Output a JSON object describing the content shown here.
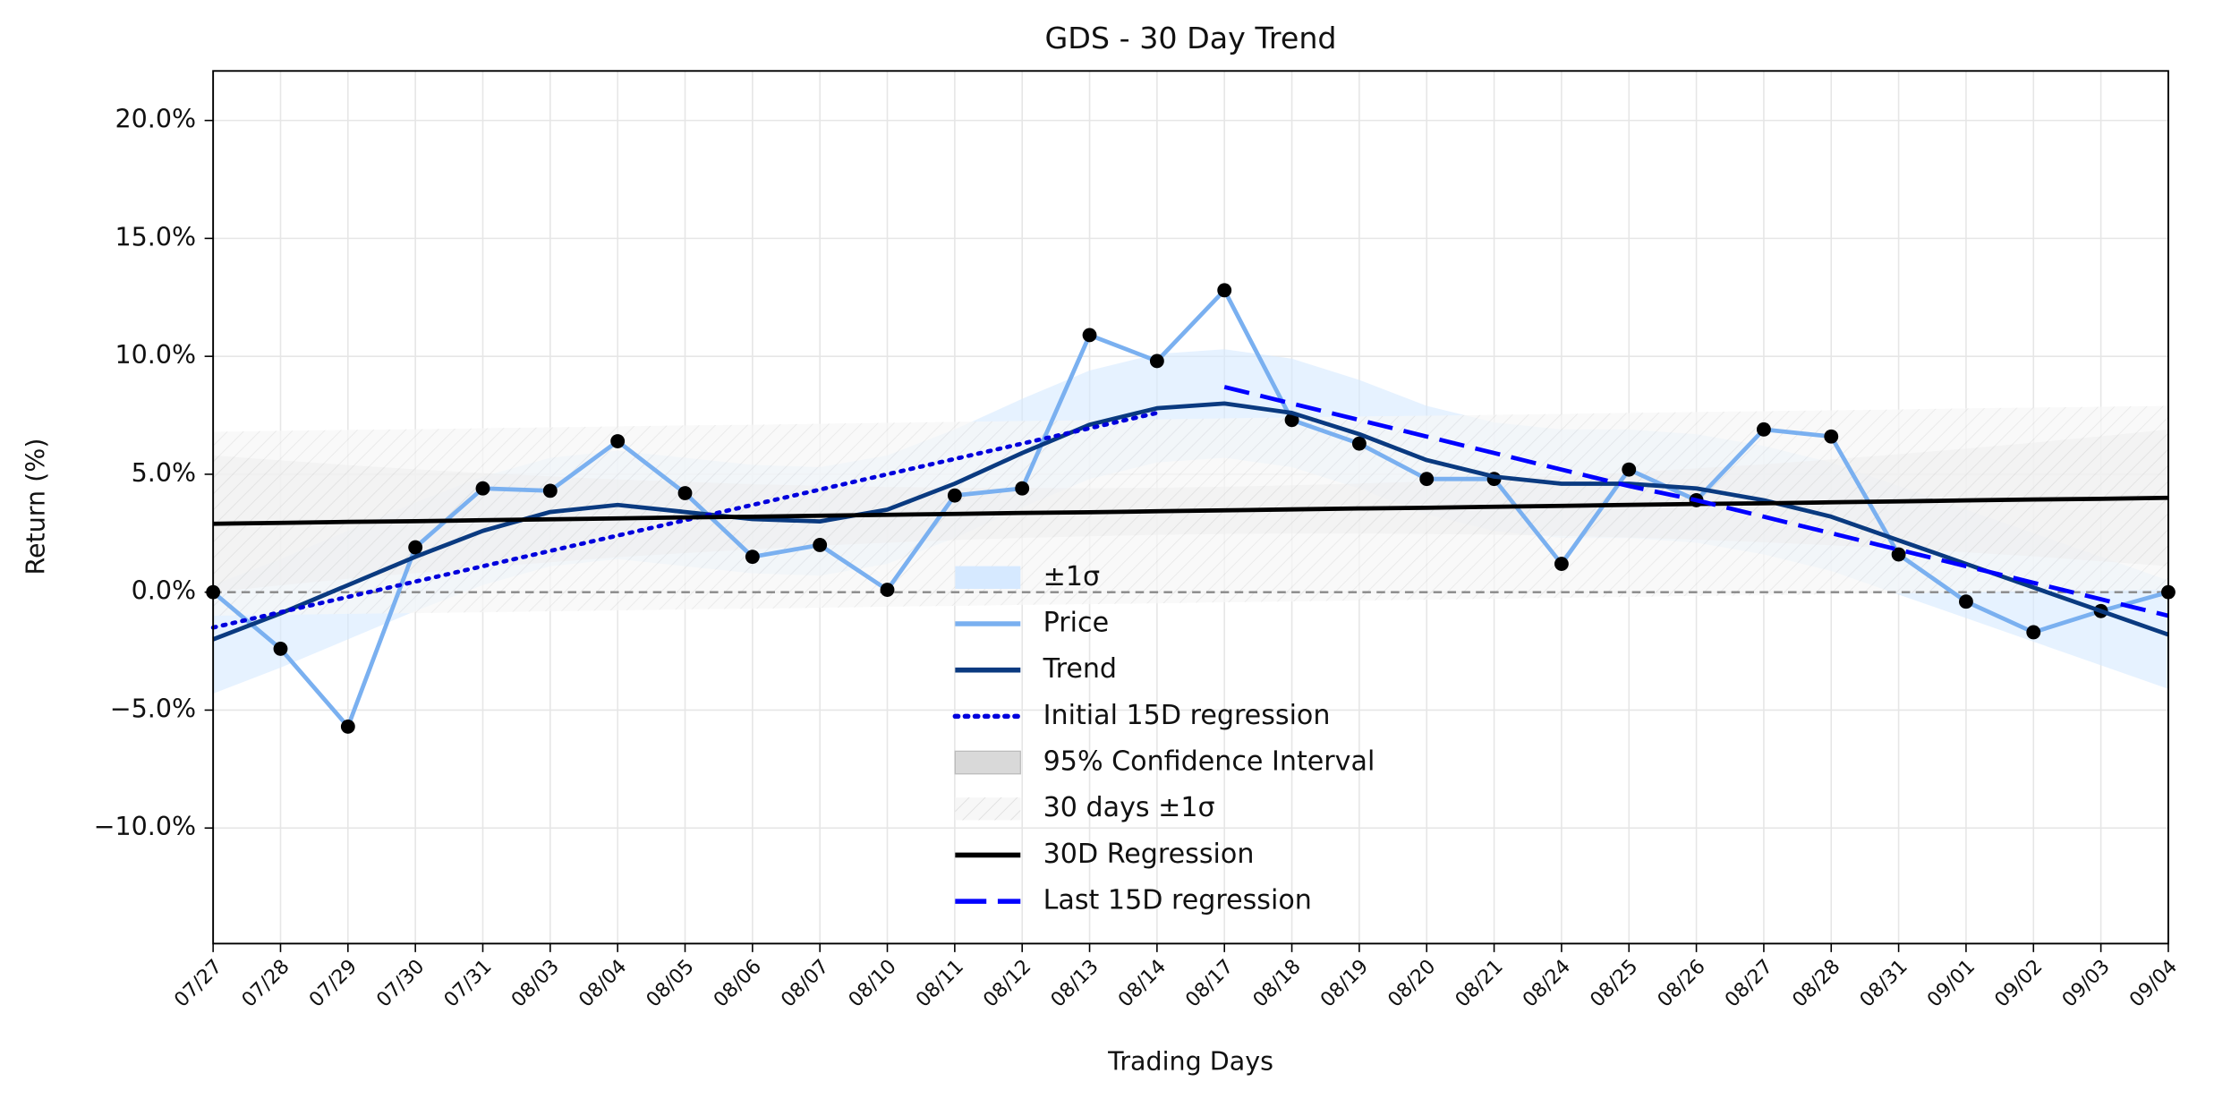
{
  "chart_data": {
    "type": "line",
    "title": "GDS - 30 Day Trend",
    "xlabel": "Trading Days",
    "ylabel": "Return (%)",
    "categories": [
      "07/27",
      "07/28",
      "07/29",
      "07/30",
      "07/31",
      "08/03",
      "08/04",
      "08/05",
      "08/06",
      "08/07",
      "08/10",
      "08/11",
      "08/12",
      "08/13",
      "08/14",
      "08/17",
      "08/18",
      "08/19",
      "08/20",
      "08/21",
      "08/24",
      "08/25",
      "08/26",
      "08/27",
      "08/28",
      "08/31",
      "09/01",
      "09/02",
      "09/03",
      "09/04"
    ],
    "ylim": [
      -14.9,
      22.1
    ],
    "yticks": [
      {
        "value": -10,
        "label": "−10.0%"
      },
      {
        "value": -5,
        "label": "−5.0%"
      },
      {
        "value": 0,
        "label": "0.0%"
      },
      {
        "value": 5,
        "label": "5.0%"
      },
      {
        "value": 10,
        "label": "10.0%"
      },
      {
        "value": 15,
        "label": "15.0%"
      },
      {
        "value": 20,
        "label": "20.0%"
      }
    ],
    "grid": true,
    "legend": "lower center",
    "series": [
      {
        "name": "Price",
        "color": "#7ab0f0",
        "markers": true,
        "values": [
          0,
          -2.4,
          -5.7,
          1.9,
          4.4,
          4.3,
          6.4,
          4.2,
          1.5,
          2.0,
          0.1,
          4.1,
          4.4,
          10.9,
          9.8,
          12.8,
          7.3,
          6.3,
          4.8,
          4.8,
          1.2,
          5.2,
          3.9,
          6.9,
          6.6,
          1.6,
          -0.4,
          -1.7,
          -0.8,
          0
        ]
      },
      {
        "name": "Trend",
        "color": "#0a3a80",
        "band_name": "±1σ",
        "band_color": "#d6e9ff",
        "sigma": 2.3,
        "values": [
          -2.0,
          -0.9,
          0.3,
          1.5,
          2.6,
          3.4,
          3.7,
          3.4,
          3.1,
          3.0,
          3.5,
          4.6,
          5.9,
          7.1,
          7.8,
          8.0,
          7.6,
          6.7,
          5.6,
          4.9,
          4.6,
          4.6,
          4.4,
          3.9,
          3.2,
          2.2,
          1.2,
          0.2,
          -0.8,
          -1.8
        ]
      },
      {
        "name": "Initial 15D regression",
        "color": "#0000dd",
        "style": "dotted",
        "values": [
          -1.5,
          -0.85,
          -0.2,
          0.45,
          1.1,
          1.75,
          2.4,
          3.05,
          3.7,
          4.35,
          5.0,
          5.65,
          6.3,
          6.95,
          7.6,
          null,
          null,
          null,
          null,
          null,
          null,
          null,
          null,
          null,
          null,
          null,
          null,
          null,
          null,
          null
        ]
      },
      {
        "name": "95% Confidence Interval",
        "color": "#d9d9d9",
        "kind": "band",
        "lower": [
          0.0,
          0.29,
          0.57,
          0.81,
          1.05,
          1.27,
          1.48,
          1.66,
          1.82,
          1.97,
          2.1,
          2.21,
          2.3,
          2.37,
          2.43,
          2.47,
          2.49,
          2.49,
          2.47,
          2.44,
          2.39,
          2.32,
          2.23,
          2.12,
          1.99,
          1.85,
          1.69,
          1.52,
          1.31,
          1.1
        ],
        "upper": [
          5.8,
          5.59,
          5.39,
          5.21,
          5.05,
          4.91,
          4.78,
          4.68,
          4.58,
          4.51,
          4.46,
          4.43,
          4.42,
          4.41,
          4.43,
          4.47,
          4.53,
          4.61,
          4.69,
          4.8,
          4.93,
          5.07,
          5.25,
          5.42,
          5.63,
          5.85,
          6.09,
          6.34,
          6.61,
          6.9
        ]
      },
      {
        "name": "30D Regression",
        "color": "#000000",
        "band_name": "30 days ±1σ",
        "band_color": "hatch",
        "sigma": 3.9,
        "values": [
          2.9,
          2.94,
          2.98,
          3.01,
          3.05,
          3.09,
          3.13,
          3.17,
          3.2,
          3.24,
          3.28,
          3.32,
          3.36,
          3.39,
          3.43,
          3.47,
          3.51,
          3.55,
          3.58,
          3.62,
          3.66,
          3.7,
          3.74,
          3.77,
          3.81,
          3.85,
          3.89,
          3.93,
          3.96,
          4.0
        ]
      },
      {
        "name": "Last 15D regression",
        "color": "#0000ff",
        "style": "dashed",
        "values": [
          null,
          null,
          null,
          null,
          null,
          null,
          null,
          null,
          null,
          null,
          null,
          null,
          null,
          null,
          null,
          8.7,
          8.0,
          7.3,
          6.6,
          5.9,
          5.2,
          4.5,
          3.9,
          3.2,
          2.5,
          1.8,
          1.1,
          0.4,
          -0.3,
          -1.0
        ]
      }
    ]
  }
}
